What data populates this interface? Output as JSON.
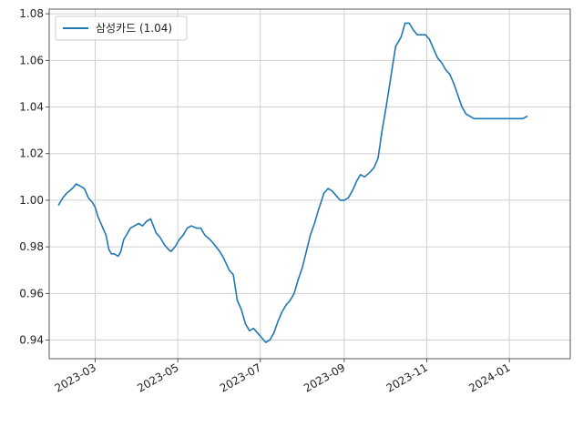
{
  "chart_data": {
    "type": "line",
    "title": "",
    "xlabel": "",
    "ylabel": "",
    "legend": {
      "placement": "top-left",
      "label": "삼성카드 (1.04)"
    },
    "grid": true,
    "colors": {
      "line": "#1f77b4",
      "grid": "#d0d0d0",
      "axis": "#333333"
    },
    "xlim": [
      "2023-01-26",
      "2024-02-15"
    ],
    "ylim": [
      0.932,
      1.082
    ],
    "x_ticks": [
      {
        "date": "2023-03-01",
        "label": "2023-03"
      },
      {
        "date": "2023-05-01",
        "label": "2023-05"
      },
      {
        "date": "2023-07-01",
        "label": "2023-07"
      },
      {
        "date": "2023-09-01",
        "label": "2023-09"
      },
      {
        "date": "2023-11-01",
        "label": "2023-11"
      },
      {
        "date": "2024-01-01",
        "label": "2024-01"
      }
    ],
    "y_ticks": [
      {
        "value": 0.94,
        "label": "0.94"
      },
      {
        "value": 0.96,
        "label": "0.96"
      },
      {
        "value": 0.98,
        "label": "0.98"
      },
      {
        "value": 1.0,
        "label": "1.00"
      },
      {
        "value": 1.02,
        "label": "1.02"
      },
      {
        "value": 1.04,
        "label": "1.04"
      },
      {
        "value": 1.06,
        "label": "1.06"
      },
      {
        "value": 1.08,
        "label": "1.08"
      }
    ],
    "series": [
      {
        "name": "삼성카드 (1.04)",
        "x": [
          "2023-02-02",
          "2023-02-05",
          "2023-02-08",
          "2023-02-12",
          "2023-02-15",
          "2023-02-18",
          "2023-02-21",
          "2023-02-24",
          "2023-02-27",
          "2023-03-01",
          "2023-03-03",
          "2023-03-06",
          "2023-03-09",
          "2023-03-11",
          "2023-03-13",
          "2023-03-15",
          "2023-03-18",
          "2023-03-20",
          "2023-03-22",
          "2023-03-25",
          "2023-03-27",
          "2023-03-30",
          "2023-04-02",
          "2023-04-05",
          "2023-04-08",
          "2023-04-11",
          "2023-04-15",
          "2023-04-18",
          "2023-04-21",
          "2023-04-24",
          "2023-04-26",
          "2023-04-29",
          "2023-05-02",
          "2023-05-05",
          "2023-05-08",
          "2023-05-11",
          "2023-05-15",
          "2023-05-18",
          "2023-05-21",
          "2023-05-25",
          "2023-05-28",
          "2023-06-01",
          "2023-06-04",
          "2023-06-08",
          "2023-06-11",
          "2023-06-14",
          "2023-06-17",
          "2023-06-20",
          "2023-06-23",
          "2023-06-26",
          "2023-06-29",
          "2023-07-02",
          "2023-07-05",
          "2023-07-08",
          "2023-07-11",
          "2023-07-14",
          "2023-07-17",
          "2023-07-20",
          "2023-07-23",
          "2023-07-26",
          "2023-07-29",
          "2023-08-01",
          "2023-08-04",
          "2023-08-07",
          "2023-08-10",
          "2023-08-13",
          "2023-08-17",
          "2023-08-20",
          "2023-08-23",
          "2023-08-26",
          "2023-08-29",
          "2023-09-01",
          "2023-09-04",
          "2023-09-07",
          "2023-09-10",
          "2023-09-13",
          "2023-09-16",
          "2023-09-20",
          "2023-09-23",
          "2023-09-26",
          "2023-09-29",
          "2023-10-02",
          "2023-10-06",
          "2023-10-09",
          "2023-10-13",
          "2023-10-16",
          "2023-10-19",
          "2023-10-22",
          "2023-10-25",
          "2023-10-28",
          "2023-10-31",
          "2023-11-03",
          "2023-11-06",
          "2023-11-09",
          "2023-11-12",
          "2023-11-15",
          "2023-11-18",
          "2023-11-21",
          "2023-11-24",
          "2023-11-27",
          "2023-11-30",
          "2023-12-03",
          "2023-12-06",
          "2023-12-09",
          "2023-12-12",
          "2023-12-15",
          "2023-12-18",
          "2023-12-21",
          "2023-12-24",
          "2023-12-27",
          "2023-12-30",
          "2024-01-02",
          "2024-01-05",
          "2024-01-08",
          "2024-01-11",
          "2024-01-14"
        ],
        "y": [
          0.998,
          1.001,
          1.003,
          1.005,
          1.007,
          1.006,
          1.005,
          1.001,
          0.999,
          0.997,
          0.993,
          0.989,
          0.985,
          0.979,
          0.977,
          0.977,
          0.976,
          0.978,
          0.983,
          0.986,
          0.988,
          0.989,
          0.99,
          0.989,
          0.991,
          0.992,
          0.986,
          0.984,
          0.981,
          0.979,
          0.978,
          0.98,
          0.983,
          0.985,
          0.988,
          0.989,
          0.988,
          0.988,
          0.985,
          0.983,
          0.981,
          0.978,
          0.975,
          0.97,
          0.968,
          0.957,
          0.953,
          0.947,
          0.944,
          0.945,
          0.943,
          0.941,
          0.939,
          0.94,
          0.943,
          0.948,
          0.952,
          0.955,
          0.957,
          0.96,
          0.966,
          0.971,
          0.978,
          0.985,
          0.99,
          0.996,
          1.003,
          1.005,
          1.004,
          1.002,
          1.0,
          1.0,
          1.001,
          1.004,
          1.008,
          1.011,
          1.01,
          1.012,
          1.014,
          1.018,
          1.03,
          1.04,
          1.055,
          1.066,
          1.07,
          1.076,
          1.076,
          1.073,
          1.071,
          1.071,
          1.071,
          1.069,
          1.065,
          1.061,
          1.059,
          1.056,
          1.054,
          1.05,
          1.045,
          1.04,
          1.037,
          1.036,
          1.035,
          1.035,
          1.035,
          1.035,
          1.035,
          1.035,
          1.035,
          1.035,
          1.035,
          1.035,
          1.035,
          1.035,
          1.035,
          1.036
        ]
      }
    ]
  }
}
